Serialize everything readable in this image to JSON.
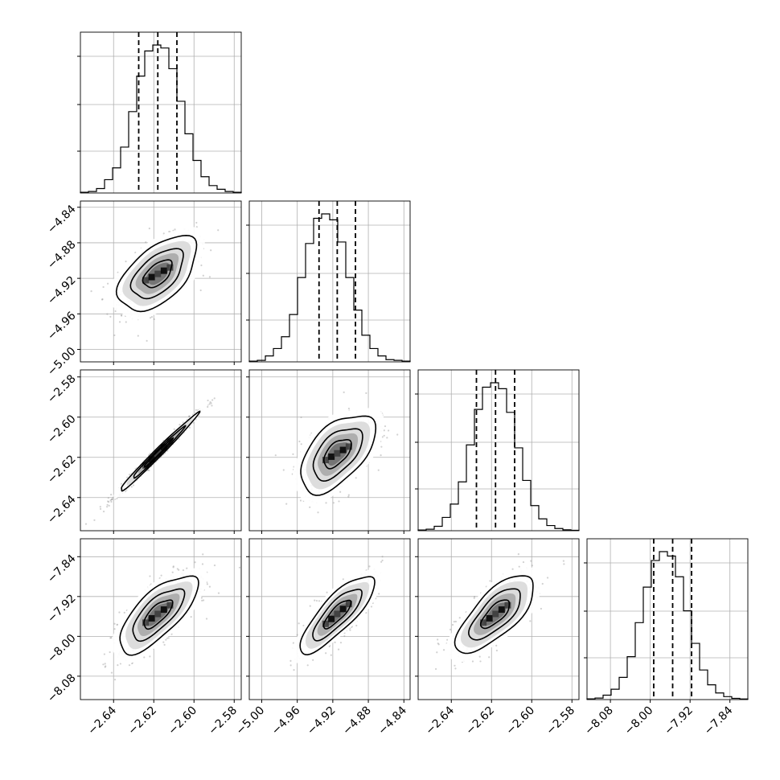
{
  "chart_data": {
    "type": "corner",
    "style": {
      "grid": true,
      "point_color": "#9a9a9a",
      "density_colors": [
        "#ffffff",
        "#d9d9d9",
        "#a8a8a8",
        "#6f6f6f",
        "#000000"
      ],
      "line_color": "#000000"
    },
    "parameters": [
      {
        "center": -2.618,
        "sigma": 0.0095,
        "range": [
          -2.6565,
          -2.5765
        ],
        "ticks": [
          -2.64,
          -2.62,
          -2.6,
          -2.58
        ],
        "tick_labels": [
          "−2.64",
          "−2.62",
          "−2.60",
          "−2.58"
        ],
        "quantiles": [
          -2.6275,
          -2.618,
          -2.6085
        ]
      },
      {
        "center": -4.915,
        "sigma": 0.0205,
        "range": [
          -5.014,
          -4.833
        ],
        "ticks": [
          -5.0,
          -4.96,
          -4.92,
          -4.88,
          -4.84
        ],
        "tick_labels": [
          "−5.00",
          "−4.96",
          "−4.92",
          "−4.88",
          "−4.84"
        ],
        "quantiles": [
          -4.9355,
          -4.915,
          -4.8945
        ]
      },
      {
        "center": -2.618,
        "sigma": 0.0095,
        "range": [
          -2.6565,
          -2.5765
        ],
        "ticks": [
          -2.64,
          -2.62,
          -2.6,
          -2.58
        ],
        "tick_labels": [
          "−2.64",
          "−2.62",
          "−2.60",
          "−2.58"
        ],
        "quantiles": [
          -2.6275,
          -2.618,
          -2.6085
        ]
      },
      {
        "center": -7.955,
        "sigma": 0.038,
        "range": [
          -8.127,
          -7.804
        ],
        "ticks": [
          -8.08,
          -8.0,
          -7.92,
          -7.84
        ],
        "tick_labels": [
          "−8.08",
          "−8.00",
          "−7.92",
          "−7.84"
        ],
        "quantiles": [
          -7.993,
          -7.955,
          -7.917
        ]
      }
    ],
    "histograms": [
      {
        "bins": 20,
        "counts_relative": [
          0.005,
          0.01,
          0.03,
          0.09,
          0.17,
          0.31,
          0.55,
          0.79,
          0.96,
          1.0,
          0.98,
          0.84,
          0.62,
          0.4,
          0.22,
          0.11,
          0.05,
          0.025,
          0.01,
          0.005
        ]
      },
      {
        "bins": 20,
        "counts_relative": [
          0.005,
          0.01,
          0.04,
          0.09,
          0.17,
          0.32,
          0.57,
          0.8,
          0.97,
          1.0,
          0.96,
          0.81,
          0.57,
          0.35,
          0.18,
          0.09,
          0.04,
          0.015,
          0.01,
          0.005
        ]
      },
      {
        "bins": 20,
        "counts_relative": [
          0.005,
          0.01,
          0.03,
          0.09,
          0.18,
          0.33,
          0.58,
          0.82,
          0.97,
          1.0,
          0.96,
          0.8,
          0.56,
          0.34,
          0.17,
          0.08,
          0.035,
          0.015,
          0.006,
          0.003
        ]
      },
      {
        "bins": 20,
        "counts_relative": [
          0.005,
          0.01,
          0.03,
          0.07,
          0.15,
          0.29,
          0.52,
          0.76,
          0.94,
          1.0,
          0.97,
          0.83,
          0.6,
          0.38,
          0.2,
          0.1,
          0.045,
          0.02,
          0.008,
          0.004
        ]
      }
    ],
    "correlations": [
      {
        "row": 1,
        "col": 0,
        "rho": 0.55
      },
      {
        "row": 2,
        "col": 0,
        "rho": 0.99
      },
      {
        "row": 2,
        "col": 1,
        "rho": 0.55
      },
      {
        "row": 3,
        "col": 0,
        "rho": 0.72
      },
      {
        "row": 3,
        "col": 1,
        "rho": 0.82
      },
      {
        "row": 3,
        "col": 2,
        "rho": 0.72
      }
    ]
  }
}
